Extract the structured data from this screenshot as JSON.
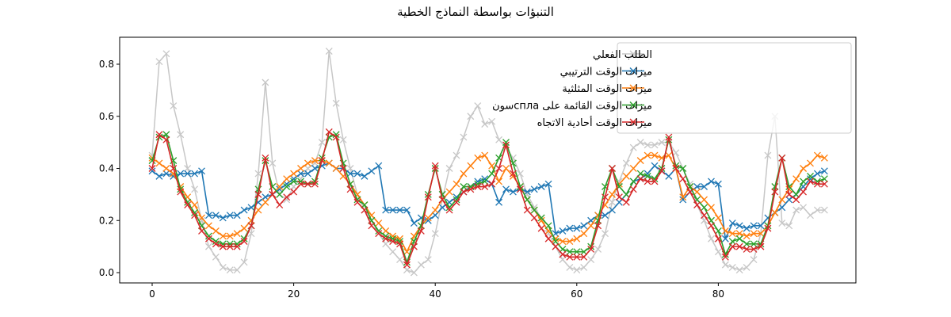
{
  "chart_data": {
    "type": "line",
    "title": "التنبؤات بواسطة النماذج الخطية",
    "xlabel": "",
    "ylabel": "",
    "xlim": [
      -4.75,
      99.75
    ],
    "ylim": [
      -0.03,
      0.9
    ],
    "xticks": [
      0,
      20,
      40,
      60,
      80
    ],
    "yticks": [
      0.0,
      0.2,
      0.4,
      0.6,
      0.8
    ],
    "grid": false,
    "legend_position": "upper right",
    "x": [
      0,
      1,
      2,
      3,
      4,
      5,
      6,
      7,
      8,
      9,
      10,
      11,
      12,
      13,
      14,
      15,
      16,
      17,
      18,
      19,
      20,
      21,
      22,
      23,
      24,
      25,
      26,
      27,
      28,
      29,
      30,
      31,
      32,
      33,
      34,
      35,
      36,
      37,
      38,
      39,
      40,
      41,
      42,
      43,
      44,
      45,
      46,
      47,
      48,
      49,
      50,
      51,
      52,
      53,
      54,
      55,
      56,
      57,
      58,
      59,
      60,
      61,
      62,
      63,
      64,
      65,
      66,
      67,
      68,
      69,
      70,
      71,
      72,
      73,
      74,
      75,
      76,
      77,
      78,
      79,
      80,
      81,
      82,
      83,
      84,
      85,
      86,
      87,
      88,
      89,
      90,
      91,
      92,
      93,
      94,
      95
    ],
    "series": [
      {
        "name": "الطلب الفعلي",
        "color": "#c7c7c7",
        "values": [
          0.45,
          0.81,
          0.84,
          0.64,
          0.53,
          0.4,
          0.32,
          0.2,
          0.1,
          0.06,
          0.02,
          0.01,
          0.01,
          0.04,
          0.15,
          0.38,
          0.73,
          0.42,
          0.3,
          0.28,
          0.33,
          0.36,
          0.4,
          0.42,
          0.5,
          0.85,
          0.65,
          0.51,
          0.4,
          0.3,
          0.24,
          0.2,
          0.15,
          0.11,
          0.08,
          0.05,
          0.01,
          0.0,
          0.03,
          0.05,
          0.15,
          0.28,
          0.4,
          0.45,
          0.52,
          0.6,
          0.64,
          0.57,
          0.58,
          0.51,
          0.48,
          0.44,
          0.38,
          0.3,
          0.25,
          0.21,
          0.15,
          0.1,
          0.05,
          0.02,
          0.01,
          0.02,
          0.05,
          0.09,
          0.15,
          0.27,
          0.35,
          0.42,
          0.48,
          0.5,
          0.49,
          0.49,
          0.5,
          0.5,
          0.46,
          0.4,
          0.34,
          0.26,
          0.2,
          0.13,
          0.08,
          0.03,
          0.02,
          0.01,
          0.02,
          0.05,
          0.15,
          0.45,
          0.6,
          0.19,
          0.18,
          0.24,
          0.25,
          0.22,
          0.24,
          0.24
        ]
      },
      {
        "name": "ميزات الوقت الترتيبي",
        "color": "#1f77b4",
        "values": [
          0.39,
          0.37,
          0.38,
          0.37,
          0.38,
          0.38,
          0.38,
          0.39,
          0.22,
          0.22,
          0.21,
          0.22,
          0.22,
          0.24,
          0.25,
          0.27,
          0.29,
          0.3,
          0.32,
          0.34,
          0.36,
          0.38,
          0.38,
          0.4,
          0.41,
          0.42,
          0.4,
          0.4,
          0.38,
          0.38,
          0.37,
          0.39,
          0.41,
          0.24,
          0.24,
          0.24,
          0.24,
          0.19,
          0.21,
          0.2,
          0.22,
          0.25,
          0.27,
          0.29,
          0.31,
          0.33,
          0.35,
          0.36,
          0.34,
          0.27,
          0.32,
          0.31,
          0.32,
          0.31,
          0.32,
          0.33,
          0.34,
          0.15,
          0.16,
          0.17,
          0.17,
          0.18,
          0.2,
          0.22,
          0.22,
          0.24,
          0.27,
          0.3,
          0.35,
          0.36,
          0.38,
          0.41,
          0.39,
          0.37,
          0.4,
          0.28,
          0.31,
          0.33,
          0.33,
          0.35,
          0.34,
          0.13,
          0.19,
          0.18,
          0.17,
          0.18,
          0.18,
          0.21,
          0.23,
          0.25,
          0.28,
          0.3,
          0.33,
          0.36,
          0.38,
          0.39
        ]
      },
      {
        "name": "ميزات الوقت المثلثية",
        "color": "#ff7f0e",
        "values": [
          0.44,
          0.42,
          0.4,
          0.38,
          0.33,
          0.29,
          0.26,
          0.21,
          0.18,
          0.16,
          0.14,
          0.14,
          0.15,
          0.17,
          0.2,
          0.24,
          0.27,
          0.3,
          0.33,
          0.36,
          0.38,
          0.4,
          0.42,
          0.43,
          0.43,
          0.42,
          0.4,
          0.37,
          0.34,
          0.3,
          0.26,
          0.22,
          0.19,
          0.16,
          0.14,
          0.13,
          0.08,
          0.14,
          0.18,
          0.21,
          0.24,
          0.28,
          0.31,
          0.34,
          0.38,
          0.41,
          0.44,
          0.45,
          0.41,
          0.35,
          0.4,
          0.37,
          0.33,
          0.28,
          0.24,
          0.2,
          0.16,
          0.13,
          0.12,
          0.12,
          0.13,
          0.15,
          0.18,
          0.22,
          0.26,
          0.3,
          0.34,
          0.37,
          0.4,
          0.43,
          0.45,
          0.45,
          0.44,
          0.45,
          0.4,
          0.29,
          0.33,
          0.31,
          0.28,
          0.25,
          0.21,
          0.16,
          0.15,
          0.15,
          0.14,
          0.15,
          0.15,
          0.18,
          0.23,
          0.28,
          0.32,
          0.36,
          0.4,
          0.42,
          0.45,
          0.44
        ]
      },
      {
        "name": "ميزات الوقت القائمة على сплаسون",
        "color": "#2ca02c",
        "values": [
          0.43,
          0.52,
          0.53,
          0.43,
          0.32,
          0.27,
          0.23,
          0.18,
          0.14,
          0.12,
          0.11,
          0.11,
          0.11,
          0.13,
          0.18,
          0.32,
          0.43,
          0.33,
          0.3,
          0.33,
          0.35,
          0.35,
          0.34,
          0.35,
          0.44,
          0.52,
          0.53,
          0.42,
          0.34,
          0.28,
          0.26,
          0.2,
          0.16,
          0.14,
          0.13,
          0.12,
          0.04,
          0.12,
          0.18,
          0.3,
          0.4,
          0.3,
          0.25,
          0.28,
          0.33,
          0.33,
          0.34,
          0.35,
          0.38,
          0.44,
          0.5,
          0.42,
          0.33,
          0.28,
          0.24,
          0.21,
          0.18,
          0.12,
          0.09,
          0.08,
          0.08,
          0.08,
          0.1,
          0.2,
          0.33,
          0.4,
          0.33,
          0.3,
          0.35,
          0.38,
          0.37,
          0.36,
          0.4,
          0.51,
          0.41,
          0.4,
          0.33,
          0.28,
          0.25,
          0.2,
          0.16,
          0.07,
          0.12,
          0.13,
          0.11,
          0.11,
          0.11,
          0.18,
          0.33,
          0.44,
          0.33,
          0.3,
          0.35,
          0.37,
          0.35,
          0.36
        ]
      },
      {
        "name": "ميزات الوقت أحادية الاتجاه",
        "color": "#d62728",
        "values": [
          0.4,
          0.53,
          0.51,
          0.4,
          0.31,
          0.26,
          0.22,
          0.16,
          0.13,
          0.11,
          0.1,
          0.1,
          0.1,
          0.12,
          0.18,
          0.3,
          0.44,
          0.3,
          0.26,
          0.29,
          0.31,
          0.34,
          0.34,
          0.34,
          0.43,
          0.54,
          0.52,
          0.4,
          0.32,
          0.27,
          0.24,
          0.18,
          0.15,
          0.13,
          0.12,
          0.11,
          0.03,
          0.1,
          0.16,
          0.29,
          0.41,
          0.28,
          0.24,
          0.27,
          0.31,
          0.32,
          0.33,
          0.33,
          0.34,
          0.4,
          0.49,
          0.38,
          0.32,
          0.24,
          0.21,
          0.17,
          0.13,
          0.1,
          0.07,
          0.06,
          0.06,
          0.06,
          0.09,
          0.18,
          0.29,
          0.4,
          0.29,
          0.27,
          0.32,
          0.36,
          0.35,
          0.35,
          0.39,
          0.52,
          0.4,
          0.36,
          0.31,
          0.26,
          0.22,
          0.18,
          0.13,
          0.06,
          0.1,
          0.1,
          0.09,
          0.09,
          0.1,
          0.17,
          0.31,
          0.44,
          0.3,
          0.28,
          0.31,
          0.35,
          0.34,
          0.34
        ]
      }
    ]
  },
  "legend": {
    "items": [
      "الطلب الفعلي",
      "ميزات الوقت الترتيبي",
      "ميزات الوقت المثلثية",
      "ميزات الوقت القائمة على сплаسون",
      "ميزات الوقت أحادية الاتجاه"
    ]
  }
}
